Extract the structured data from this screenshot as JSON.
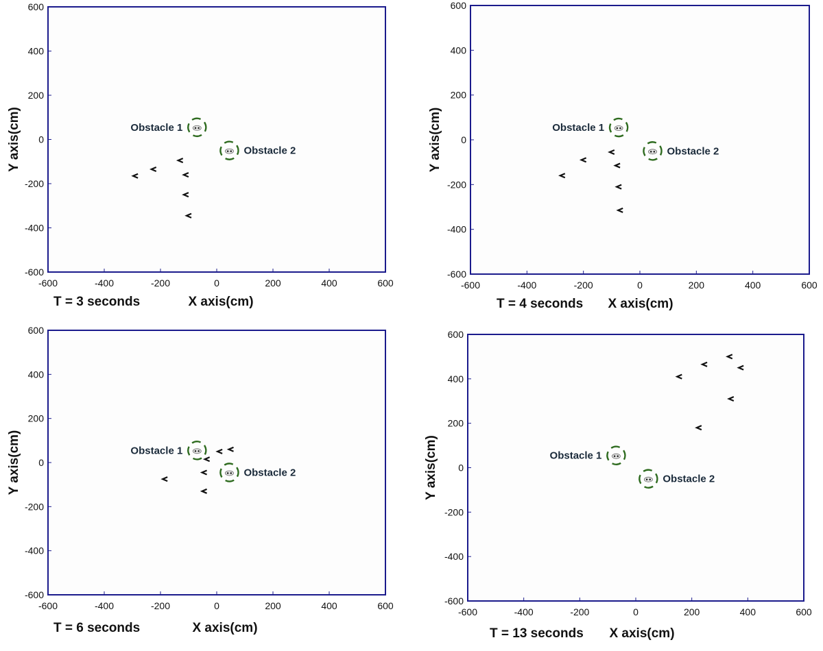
{
  "chart_data": [
    {
      "type": "scatter",
      "title": "",
      "time_label": "T = 3 seconds",
      "xlabel": "X axis(cm)",
      "ylabel": "Y axis(cm)",
      "xlim": [
        -600,
        600
      ],
      "ylim": [
        -600,
        600
      ],
      "xticks": [
        -600,
        -400,
        -200,
        0,
        200,
        400,
        600
      ],
      "yticks": [
        -600,
        -400,
        -200,
        0,
        200,
        400,
        600
      ],
      "grid": false,
      "obstacles": [
        {
          "name": "Obstacle 1",
          "x": -70,
          "y": 55,
          "label_side": "left"
        },
        {
          "name": "Obstacle 2",
          "x": 45,
          "y": -50,
          "label_side": "right"
        }
      ],
      "robots": [
        {
          "x": -290,
          "y": -165
        },
        {
          "x": -225,
          "y": -135
        },
        {
          "x": -130,
          "y": -95
        },
        {
          "x": -110,
          "y": -160
        },
        {
          "x": -110,
          "y": -250
        },
        {
          "x": -100,
          "y": -345
        }
      ]
    },
    {
      "type": "scatter",
      "title": "",
      "time_label": "T = 4 seconds",
      "xlabel": "X axis(cm)",
      "ylabel": "Y axis(cm)",
      "xlim": [
        -600,
        600
      ],
      "ylim": [
        -600,
        600
      ],
      "xticks": [
        -600,
        -400,
        -200,
        0,
        200,
        400,
        600
      ],
      "yticks": [
        -600,
        -400,
        -200,
        0,
        200,
        400,
        600
      ],
      "grid": false,
      "obstacles": [
        {
          "name": "Obstacle 1",
          "x": -75,
          "y": 55,
          "label_side": "left"
        },
        {
          "name": "Obstacle 2",
          "x": 45,
          "y": -50,
          "label_side": "right"
        }
      ],
      "robots": [
        {
          "x": -275,
          "y": -160
        },
        {
          "x": -200,
          "y": -90
        },
        {
          "x": -100,
          "y": -55
        },
        {
          "x": -80,
          "y": -115
        },
        {
          "x": -75,
          "y": -210
        },
        {
          "x": -70,
          "y": -315
        }
      ]
    },
    {
      "type": "scatter",
      "title": "",
      "time_label": "T = 6 seconds",
      "xlabel": "X axis(cm)",
      "ylabel": "Y axis(cm)",
      "xlim": [
        -600,
        600
      ],
      "ylim": [
        -600,
        600
      ],
      "xticks": [
        -600,
        -400,
        -200,
        0,
        200,
        400,
        600
      ],
      "yticks": [
        -600,
        -400,
        -200,
        0,
        200,
        400,
        600
      ],
      "grid": false,
      "obstacles": [
        {
          "name": "Obstacle 1",
          "x": -70,
          "y": 55,
          "label_side": "left"
        },
        {
          "name": "Obstacle 2",
          "x": 45,
          "y": -45,
          "label_side": "right"
        }
      ],
      "robots": [
        {
          "x": -185,
          "y": -75
        },
        {
          "x": -35,
          "y": 15
        },
        {
          "x": 10,
          "y": 50
        },
        {
          "x": 50,
          "y": 60
        },
        {
          "x": -45,
          "y": -45
        },
        {
          "x": -45,
          "y": -130
        }
      ]
    },
    {
      "type": "scatter",
      "title": "",
      "time_label": "T = 13 seconds",
      "xlabel": "X axis(cm)",
      "ylabel": "Y axis(cm)",
      "xlim": [
        -600,
        600
      ],
      "ylim": [
        -600,
        600
      ],
      "xticks": [
        -600,
        -400,
        -200,
        0,
        200,
        400,
        600
      ],
      "yticks": [
        -600,
        -400,
        -200,
        0,
        200,
        400,
        600
      ],
      "grid": false,
      "obstacles": [
        {
          "name": "Obstacle 1",
          "x": -70,
          "y": 55,
          "label_side": "left"
        },
        {
          "name": "Obstacle 2",
          "x": 45,
          "y": -50,
          "label_side": "right"
        }
      ],
      "robots": [
        {
          "x": 155,
          "y": 410
        },
        {
          "x": 245,
          "y": 465
        },
        {
          "x": 335,
          "y": 500
        },
        {
          "x": 375,
          "y": 450
        },
        {
          "x": 340,
          "y": 310
        },
        {
          "x": 225,
          "y": 180
        }
      ]
    }
  ]
}
